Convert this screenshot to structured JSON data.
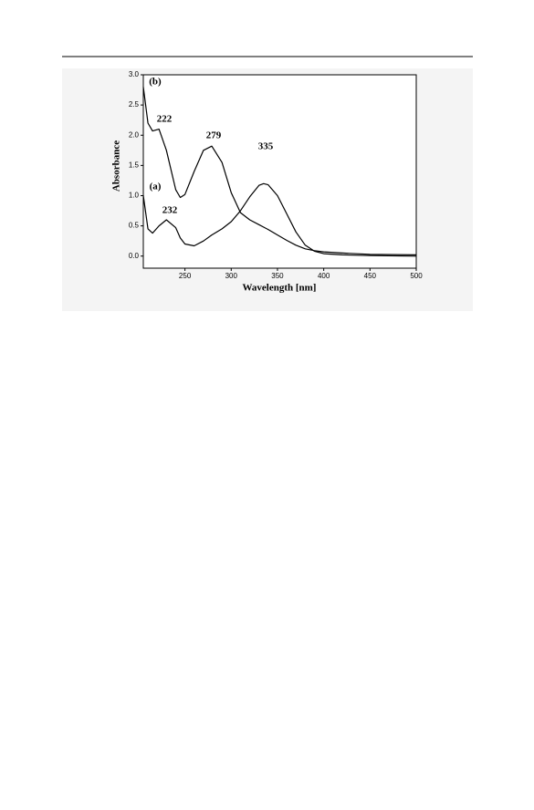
{
  "chart_data": {
    "type": "line",
    "x_label": "Wavelength [nm]",
    "y_label": "Absorbance",
    "x": [
      205,
      210,
      215,
      222,
      230,
      240,
      245,
      250,
      260,
      270,
      279,
      290,
      300,
      310,
      320,
      330,
      335,
      340,
      350,
      360,
      370,
      380,
      390,
      400,
      420,
      450,
      500
    ],
    "series": [
      {
        "name": "(a)",
        "color": "#000000",
        "values": [
          1.0,
          0.45,
          0.38,
          0.5,
          0.6,
          0.47,
          0.3,
          0.2,
          0.17,
          0.25,
          0.35,
          0.45,
          0.57,
          0.75,
          0.98,
          1.17,
          1.2,
          1.18,
          1.0,
          0.7,
          0.4,
          0.18,
          0.08,
          0.04,
          0.02,
          0.01,
          0.0
        ]
      },
      {
        "name": "(b)",
        "color": "#000000",
        "values": [
          2.8,
          2.2,
          2.07,
          2.1,
          1.75,
          1.1,
          0.97,
          1.02,
          1.4,
          1.75,
          1.82,
          1.55,
          1.05,
          0.72,
          0.6,
          0.52,
          0.48,
          0.44,
          0.35,
          0.26,
          0.18,
          0.12,
          0.09,
          0.07,
          0.05,
          0.03,
          0.02
        ]
      }
    ],
    "annotations": [
      "232",
      "335",
      "222",
      "279"
    ],
    "xlim": [
      205,
      500
    ],
    "xticks": [
      250,
      300,
      350,
      400,
      450,
      500
    ],
    "ylim": [
      -0.2,
      3.0
    ],
    "yticks": [
      {
        "value": 0,
        "label": "0.0"
      },
      {
        "value": 0.5,
        "label": "0.5"
      },
      {
        "value": 1,
        "label": "1.0"
      },
      {
        "value": 1.5,
        "label": "1.5"
      },
      {
        "value": 2,
        "label": "2.0"
      },
      {
        "value": 2.5,
        "label": "2.5"
      },
      {
        "value": 3,
        "label": "3.0"
      }
    ]
  }
}
